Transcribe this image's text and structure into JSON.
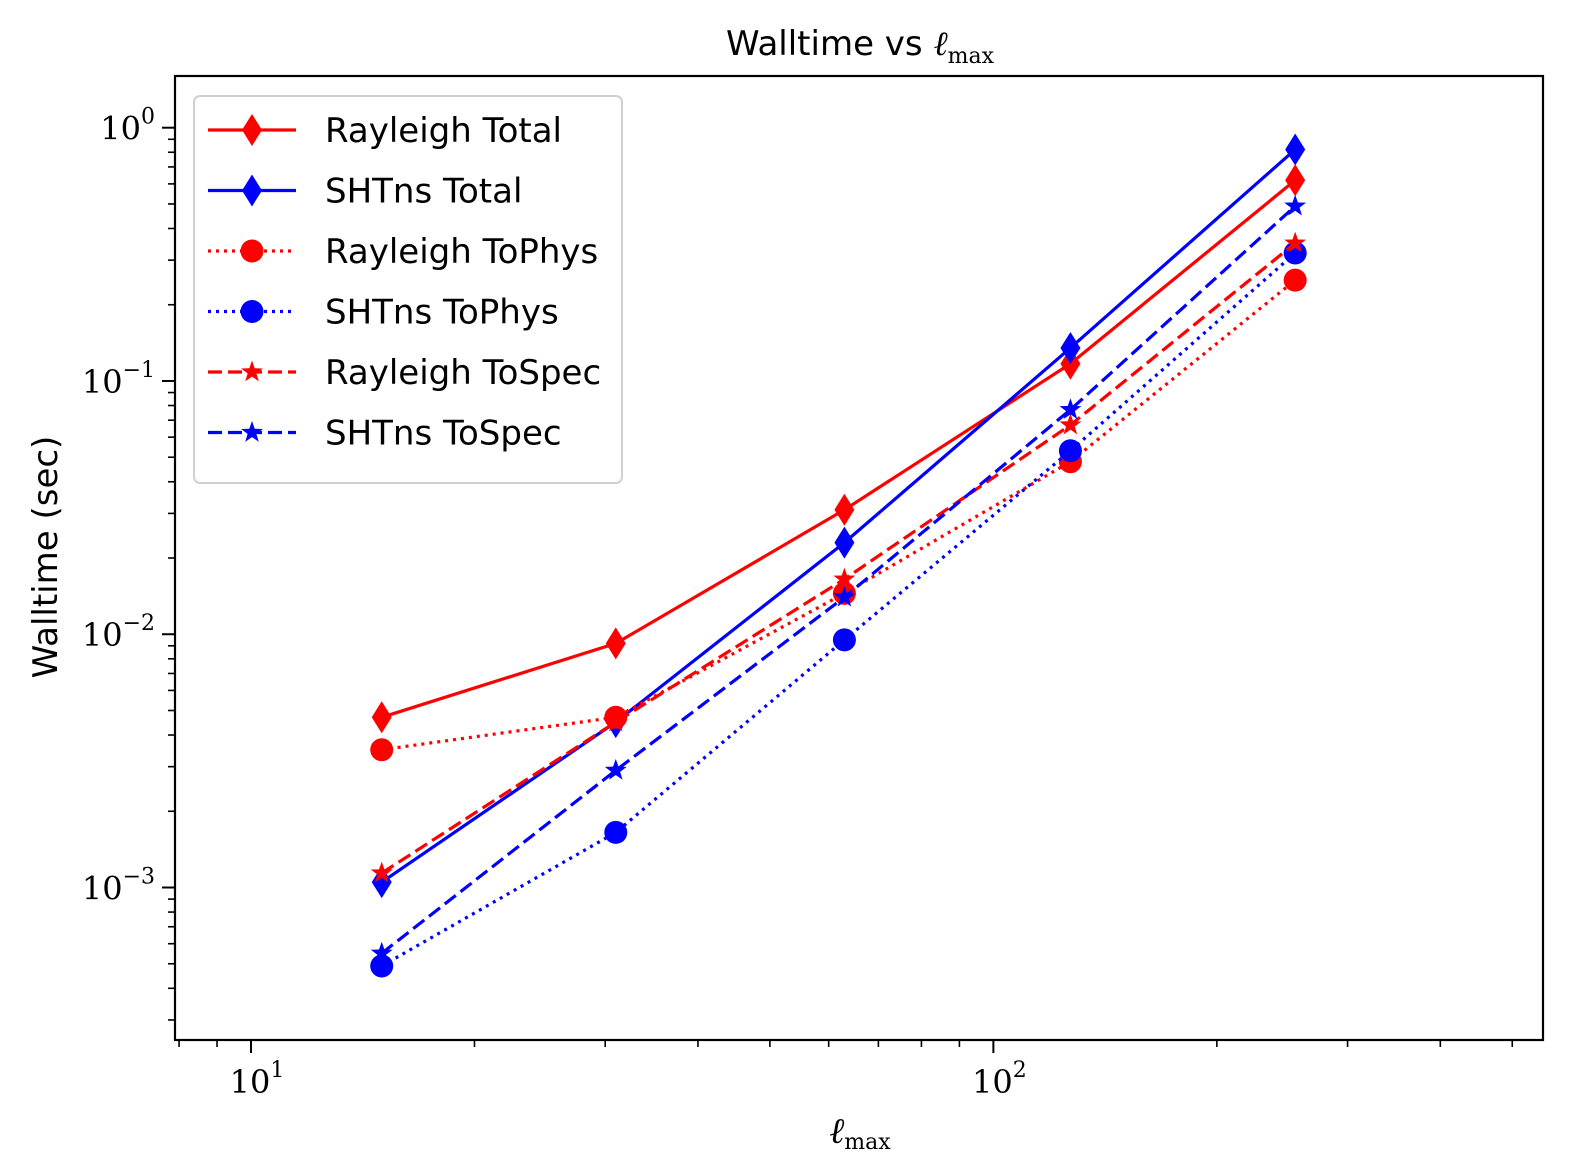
{
  "chart_data": {
    "type": "line",
    "title_text": "Walltime vs ",
    "title_symbol": "ℓ",
    "title_subscript": "max",
    "xlabel_symbol": "ℓ",
    "xlabel_subscript": "max",
    "ylabel": "Walltime (sec)",
    "x_scale": "log",
    "y_scale": "log",
    "xlim": [
      7.9,
      550
    ],
    "ylim": [
      0.00025,
      1.6
    ],
    "x_major_ticks": [
      {
        "value": 10,
        "base": "10",
        "exp": "1"
      },
      {
        "value": 100,
        "base": "10",
        "exp": "2"
      }
    ],
    "y_major_ticks": [
      {
        "value": 1,
        "base": "10",
        "exp": "0"
      },
      {
        "value": 0.1,
        "base": "10",
        "exp": "−1"
      },
      {
        "value": 0.01,
        "base": "10",
        "exp": "−2"
      },
      {
        "value": 0.001,
        "base": "10",
        "exp": "−3"
      }
    ],
    "grid": false,
    "legend_position": "top-left",
    "x": [
      15,
      31,
      63,
      127,
      255
    ],
    "series": [
      {
        "name": "Rayleigh Total",
        "color": "#ff0000",
        "linestyle": "solid",
        "marker": "diamond",
        "values": [
          0.0047,
          0.0092,
          0.031,
          0.117,
          0.62
        ]
      },
      {
        "name": "SHTns Total",
        "color": "#0000ff",
        "linestyle": "solid",
        "marker": "diamond",
        "values": [
          0.00105,
          0.0045,
          0.023,
          0.135,
          0.82
        ]
      },
      {
        "name": "Rayleigh ToPhys",
        "color": "#ff0000",
        "linestyle": "dotted",
        "marker": "circle",
        "values": [
          0.0035,
          0.0047,
          0.0145,
          0.048,
          0.25
        ]
      },
      {
        "name": "SHTns ToPhys",
        "color": "#0000ff",
        "linestyle": "dotted",
        "marker": "circle",
        "values": [
          0.00049,
          0.00165,
          0.0095,
          0.053,
          0.32
        ]
      },
      {
        "name": "Rayleigh ToSpec",
        "color": "#ff0000",
        "linestyle": "dashed",
        "marker": "star",
        "values": [
          0.00114,
          0.0045,
          0.0165,
          0.067,
          0.35
        ]
      },
      {
        "name": "SHTns ToSpec",
        "color": "#0000ff",
        "linestyle": "dashed",
        "marker": "star",
        "values": [
          0.00055,
          0.0029,
          0.014,
          0.077,
          0.49
        ]
      }
    ]
  }
}
